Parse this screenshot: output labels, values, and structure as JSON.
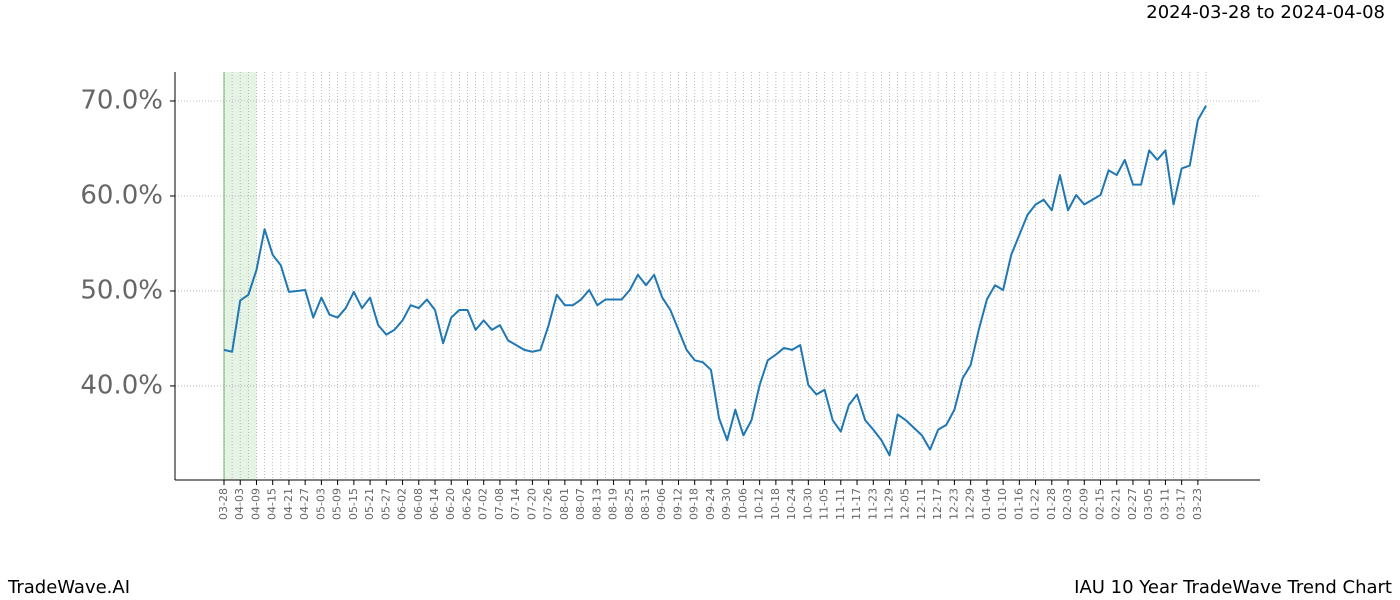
{
  "chart_data": {
    "type": "line",
    "title": "2024-03-28 to 2024-04-08",
    "brand": "TradeWave.AI",
    "subtitle": "IAU 10 Year TradeWave Trend Chart",
    "categories": [
      "03-28",
      null,
      "04-03",
      null,
      "04-09",
      null,
      "04-15",
      null,
      "04-21",
      null,
      "04-27",
      null,
      "05-03",
      null,
      "05-09",
      null,
      "05-15",
      null,
      "05-21",
      null,
      "05-27",
      null,
      "06-02",
      null,
      "06-08",
      null,
      "06-14",
      null,
      "06-20",
      null,
      "06-26",
      null,
      "07-02",
      null,
      "07-08",
      null,
      "07-14",
      null,
      "07-20",
      null,
      "07-26",
      null,
      "08-01",
      null,
      "08-07",
      null,
      "08-13",
      null,
      "08-19",
      null,
      "08-25",
      null,
      "08-31",
      null,
      "09-06",
      null,
      "09-12",
      null,
      "09-18",
      null,
      "09-24",
      null,
      "09-30",
      null,
      "10-06",
      null,
      "10-12",
      null,
      "10-18",
      null,
      "10-24",
      null,
      "10-30",
      null,
      "11-05",
      null,
      "11-11",
      null,
      "11-17",
      null,
      "11-23",
      null,
      "11-29",
      null,
      "12-05",
      null,
      "12-11",
      null,
      "12-17",
      null,
      "12-23",
      null,
      "12-29",
      null,
      "01-04",
      null,
      "01-10",
      null,
      "01-16",
      null,
      "01-22",
      null,
      "01-28",
      null,
      "02-03",
      null,
      "02-09",
      null,
      "02-15",
      null,
      "02-21",
      null,
      "02-27",
      null,
      "03-05",
      null,
      "03-11",
      null,
      "03-17",
      null,
      "03-23",
      null
    ],
    "values": [
      43.8,
      43.6,
      49.0,
      49.6,
      52.2,
      56.5,
      53.8,
      52.7,
      49.9,
      50.0,
      50.1,
      47.2,
      49.3,
      47.5,
      47.2,
      48.2,
      49.9,
      48.2,
      49.3,
      46.4,
      45.4,
      45.9,
      46.9,
      48.5,
      48.2,
      49.1,
      48.0,
      44.5,
      47.2,
      48.0,
      48.0,
      45.9,
      46.9,
      45.9,
      46.4,
      44.8,
      44.3,
      43.8,
      43.6,
      43.8,
      46.4,
      49.6,
      48.5,
      48.5,
      49.1,
      50.1,
      48.5,
      49.1,
      49.1,
      49.1,
      50.1,
      51.7,
      50.6,
      51.7,
      49.3,
      48.0,
      45.9,
      43.8,
      42.7,
      42.5,
      41.7,
      36.6,
      34.3,
      37.5,
      34.8,
      36.4,
      40.1,
      42.7,
      43.3,
      44.0,
      43.8,
      44.3,
      40.1,
      39.1,
      39.6,
      36.4,
      35.2,
      38.0,
      39.1,
      36.4,
      35.4,
      34.3,
      32.7,
      37.0,
      36.4,
      35.6,
      34.8,
      33.3,
      35.4,
      35.9,
      37.5,
      40.8,
      42.2,
      45.9,
      49.1,
      50.6,
      50.1,
      53.8,
      55.9,
      58.0,
      59.1,
      59.6,
      58.5,
      62.2,
      58.5,
      60.1,
      59.1,
      59.6,
      60.1,
      62.7,
      62.2,
      63.8,
      61.2,
      61.2,
      64.8,
      63.8,
      64.8,
      59.1,
      62.9,
      63.2,
      68.0,
      69.5
    ],
    "color": "#1f77b4",
    "highlight": [
      "03-28",
      "04-09"
    ],
    "highlight_color": "#2ca02c",
    "ylim": [
      30.1,
      73.05
    ],
    "yticks": [
      {
        "value": 40,
        "label": "40.0%"
      },
      {
        "value": 50,
        "label": "50.0%"
      },
      {
        "value": 60,
        "label": "60.0%"
      },
      {
        "value": 70,
        "label": "70.0%"
      }
    ],
    "grid": true
  }
}
